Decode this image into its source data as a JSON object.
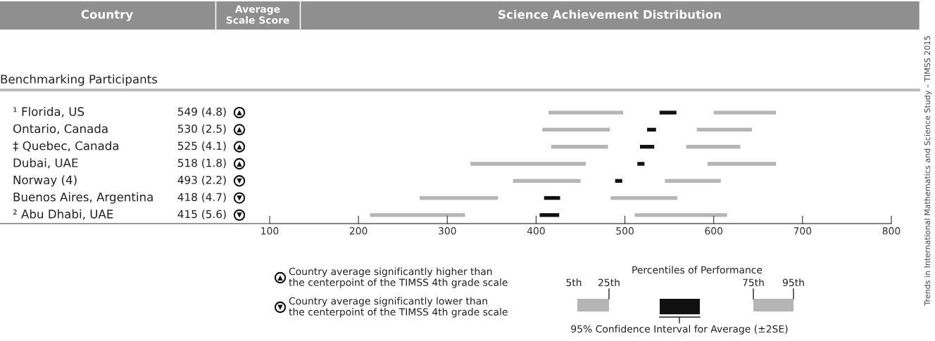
{
  "chart_data": {
    "type": "bar",
    "orientation": "horizontal",
    "subtitle": "Benchmarking Participants",
    "categories": [
      "¹ Florida, US",
      "Ontario, Canada",
      "‡ Quebec, Canada",
      "Dubai, UAE",
      "Norway (4)",
      "Buenos Aires, Argentina",
      "² Abu Dhabi, UAE"
    ],
    "series": [
      {
        "color": "#b5b5b5",
        "base": [
          414,
          407,
          417,
          326,
          374,
          269,
          213
        ],
        "values": [
          84,
          76,
          64,
          130,
          76,
          88,
          107
        ]
      },
      {
        "color": "#111111",
        "base": [
          539,
          525,
          517,
          514,
          489,
          409,
          404
        ],
        "values": [
          19,
          10,
          16,
          8,
          8,
          18,
          22
        ]
      },
      {
        "color": "#b5b5b5",
        "base": [
          600,
          581,
          569,
          593,
          545,
          484,
          511
        ],
        "values": [
          70,
          62,
          61,
          77,
          63,
          75,
          104
        ]
      }
    ],
    "xlim": [
      100,
      800
    ],
    "xticks": [
      100,
      200,
      300,
      400,
      500,
      600,
      700,
      800
    ],
    "grid": false,
    "annotations": [
      "Country",
      "Average\nScale Score",
      "Science Achievement Distribution",
      "Percentiles of Performance",
      "5th",
      "25th",
      "75th",
      "95th",
      "95% Confidence Interval for Average (±2SE)",
      "Trends in International Mathematics and Science Study – TIMSS 2015",
      "▲",
      "Country average significantly higher than\nthe centerpoint of the TIMSS 4th grade scale",
      "▼",
      "Country average significantly lower than\nthe centerpoint of the TIMSS 4th grade scale",
      "549 (4.8)",
      "▲",
      "530 (2.5)",
      "▲",
      "525 (4.1)",
      "▲",
      "518 (1.8)",
      "▲",
      "493 (2.2)",
      "▼",
      "418 (4.7)",
      "▼",
      "415 (5.6)",
      "▼"
    ]
  }
}
